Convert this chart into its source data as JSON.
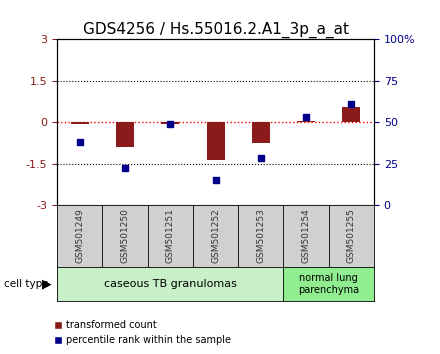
{
  "title": "GDS4256 / Hs.55016.2.A1_3p_a_at",
  "samples": [
    "GSM501249",
    "GSM501250",
    "GSM501251",
    "GSM501252",
    "GSM501253",
    "GSM501254",
    "GSM501255"
  ],
  "red_bars": [
    -0.05,
    -0.9,
    -0.05,
    -1.35,
    -0.75,
    0.05,
    0.55
  ],
  "blue_dots": [
    -0.7,
    -1.65,
    -0.05,
    -2.1,
    -1.3,
    0.2,
    0.65
  ],
  "ylim_left": [
    -3,
    3
  ],
  "yticks_left": [
    -3,
    -1.5,
    0,
    1.5,
    3
  ],
  "ytick_labels_left": [
    "-3",
    "-1.5",
    "0",
    "1.5",
    "3"
  ],
  "yticks_right": [
    0,
    25,
    50,
    75,
    100
  ],
  "ytick_labels_right": [
    "0",
    "25",
    "50",
    "75",
    "100%"
  ],
  "group1_label": "caseous TB granulomas",
  "group2_label": "normal lung\nparenchyma",
  "group1_color": "#c8f0c8",
  "group2_color": "#90ee90",
  "cell_type_label": "cell type",
  "legend_red_label": "transformed count",
  "legend_blue_label": "percentile rank within the sample",
  "bar_color": "#8b1a1a",
  "dot_color": "#00008b",
  "bar_width": 0.4,
  "title_fontsize": 11,
  "tick_label_color_left": "#8b1a1a",
  "tick_label_color_right": "#00008b",
  "sample_box_color": "#d0d0d0",
  "sample_text_color": "#333333",
  "n_group1": 5,
  "n_group2": 2
}
